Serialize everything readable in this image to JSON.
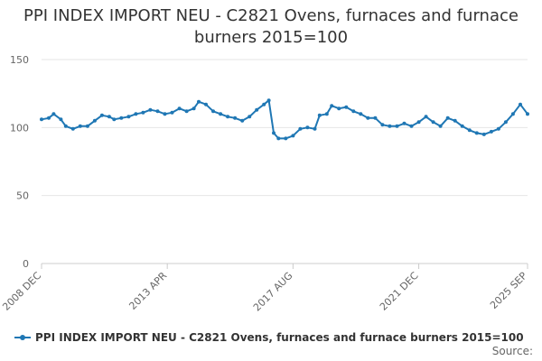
{
  "chart_data": {
    "type": "line",
    "title": "PPI INDEX IMPORT NEU - C2821 Ovens, furnaces and furnace burners 2015=100",
    "xlabel": "",
    "ylabel": "",
    "ylim": [
      0,
      150
    ],
    "yticks": [
      "0",
      "50",
      "100",
      "150"
    ],
    "xlim": [
      "2008-12",
      "2025-09"
    ],
    "xticks": [
      {
        "date": "2008-12",
        "label": "2008 DEC"
      },
      {
        "date": "2013-04",
        "label": "2013 APR"
      },
      {
        "date": "2017-08",
        "label": "2017 AUG"
      },
      {
        "date": "2021-12",
        "label": "2021 DEC"
      },
      {
        "date": "2025-09",
        "label": "2025 SEP"
      }
    ],
    "grid": true,
    "legend_position": "bottom",
    "color": "#1f77b4",
    "series": [
      {
        "name": "PPI INDEX IMPORT NEU - C2821 Ovens, furnaces and furnace burners 2015=100",
        "points": [
          [
            "2008-12",
            106
          ],
          [
            "2009-03",
            107
          ],
          [
            "2009-05",
            110
          ],
          [
            "2009-08",
            106
          ],
          [
            "2009-10",
            101
          ],
          [
            "2010-01",
            99
          ],
          [
            "2010-04",
            101
          ],
          [
            "2010-07",
            101
          ],
          [
            "2010-10",
            105
          ],
          [
            "2011-01",
            109
          ],
          [
            "2011-04",
            108
          ],
          [
            "2011-06",
            106
          ],
          [
            "2011-09",
            107
          ],
          [
            "2011-12",
            108
          ],
          [
            "2012-03",
            110
          ],
          [
            "2012-06",
            111
          ],
          [
            "2012-09",
            113
          ],
          [
            "2012-12",
            112
          ],
          [
            "2013-03",
            110
          ],
          [
            "2013-06",
            111
          ],
          [
            "2013-09",
            114
          ],
          [
            "2013-12",
            112
          ],
          [
            "2014-03",
            114
          ],
          [
            "2014-05",
            119
          ],
          [
            "2014-08",
            117
          ],
          [
            "2014-11",
            112
          ],
          [
            "2015-02",
            110
          ],
          [
            "2015-05",
            108
          ],
          [
            "2015-08",
            107
          ],
          [
            "2015-11",
            105
          ],
          [
            "2016-02",
            108
          ],
          [
            "2016-05",
            113
          ],
          [
            "2016-08",
            117
          ],
          [
            "2016-10",
            120
          ],
          [
            "2016-12",
            96
          ],
          [
            "2017-02",
            92
          ],
          [
            "2017-05",
            92
          ],
          [
            "2017-08",
            94
          ],
          [
            "2017-11",
            99
          ],
          [
            "2018-02",
            100
          ],
          [
            "2018-05",
            99
          ],
          [
            "2018-07",
            109
          ],
          [
            "2018-10",
            110
          ],
          [
            "2018-12",
            116
          ],
          [
            "2019-03",
            114
          ],
          [
            "2019-06",
            115
          ],
          [
            "2019-09",
            112
          ],
          [
            "2019-12",
            110
          ],
          [
            "2020-03",
            107
          ],
          [
            "2020-06",
            107
          ],
          [
            "2020-09",
            102
          ],
          [
            "2020-12",
            101
          ],
          [
            "2021-03",
            101
          ],
          [
            "2021-06",
            103
          ],
          [
            "2021-09",
            101
          ],
          [
            "2021-12",
            104
          ],
          [
            "2022-03",
            108
          ],
          [
            "2022-06",
            104
          ],
          [
            "2022-09",
            101
          ],
          [
            "2022-12",
            107
          ],
          [
            "2023-03",
            105
          ],
          [
            "2023-06",
            101
          ],
          [
            "2023-09",
            98
          ],
          [
            "2023-12",
            96
          ],
          [
            "2024-03",
            95
          ],
          [
            "2024-06",
            97
          ],
          [
            "2024-09",
            99
          ],
          [
            "2024-12",
            104
          ],
          [
            "2025-03",
            110
          ],
          [
            "2025-06",
            117
          ],
          [
            "2025-09",
            110
          ]
        ]
      }
    ]
  },
  "source_label": "Source:"
}
